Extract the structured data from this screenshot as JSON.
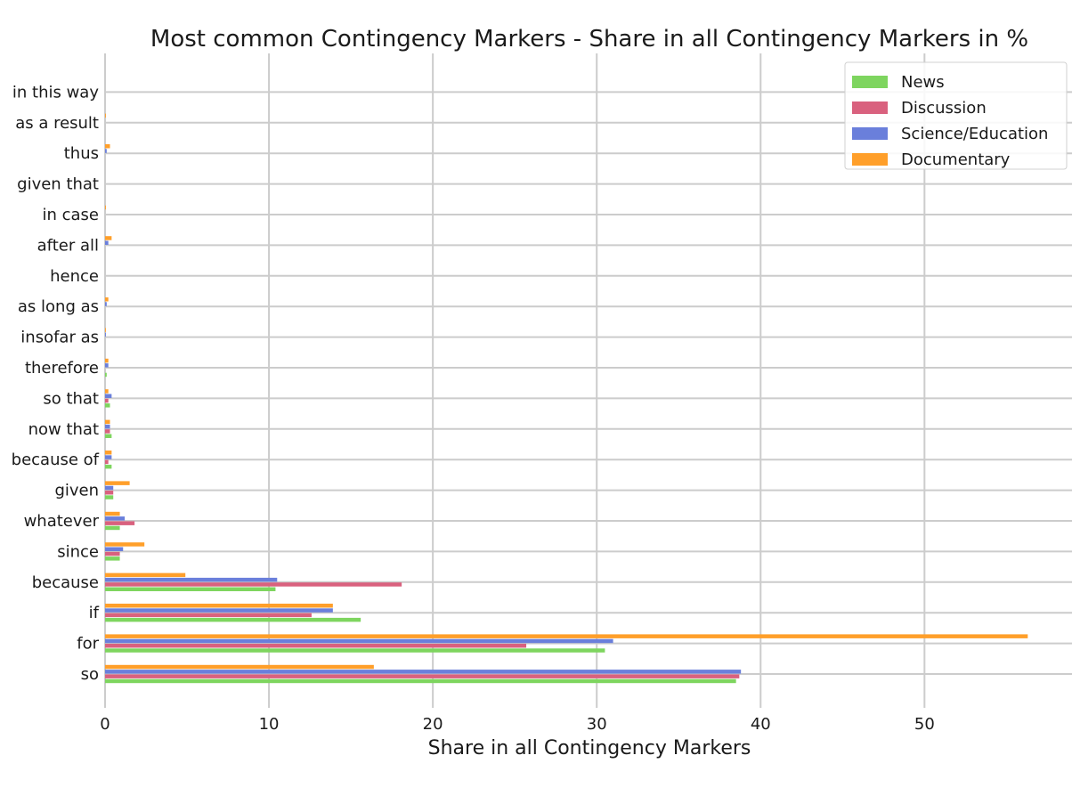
{
  "chart_data": {
    "type": "bar",
    "orientation": "horizontal",
    "title": "Most common Contingency Markers - Share in all Contingency Markers in %",
    "xlabel": "Share in all Contingency Markers",
    "ylabel": "",
    "xlim": [
      0,
      59
    ],
    "xticks": [
      0,
      10,
      20,
      30,
      40,
      50
    ],
    "grid": true,
    "legend_position": "top-right",
    "categories": [
      "so",
      "for",
      "if",
      "because",
      "since",
      "whatever",
      "given",
      "because of",
      "now that",
      "so that",
      "therefore",
      "insofar as",
      "as long as",
      "hence",
      "after all",
      "in case",
      "given that",
      "thus",
      "as a result",
      "in this way"
    ],
    "series": [
      {
        "name": "News",
        "color": "#7ed55f",
        "values": [
          38.5,
          30.5,
          15.6,
          10.4,
          0.9,
          0.9,
          0.5,
          0.4,
          0.4,
          0.3,
          0.1,
          0.0,
          0.0,
          0.0,
          0.0,
          0.0,
          0.0,
          0.0,
          0.0,
          0.0
        ]
      },
      {
        "name": "Discussion",
        "color": "#d9617e",
        "values": [
          38.7,
          25.7,
          12.6,
          18.1,
          0.9,
          1.8,
          0.5,
          0.2,
          0.3,
          0.2,
          0.0,
          0.0,
          0.0,
          0.0,
          0.0,
          0.0,
          0.0,
          0.0,
          0.0,
          0.0
        ]
      },
      {
        "name": "Science/Education",
        "color": "#6a7fdb",
        "values": [
          38.8,
          31.0,
          13.9,
          10.5,
          1.1,
          1.2,
          0.5,
          0.4,
          0.3,
          0.4,
          0.2,
          0.05,
          0.1,
          0.0,
          0.2,
          0.0,
          0.0,
          0.1,
          0.0,
          0.0
        ]
      },
      {
        "name": "Documentary",
        "color": "#ff9f2a",
        "values": [
          16.4,
          56.3,
          13.9,
          4.9,
          2.4,
          0.9,
          1.5,
          0.4,
          0.3,
          0.2,
          0.2,
          0.05,
          0.2,
          0.0,
          0.4,
          0.05,
          0.0,
          0.3,
          0.05,
          0.0
        ]
      }
    ]
  }
}
